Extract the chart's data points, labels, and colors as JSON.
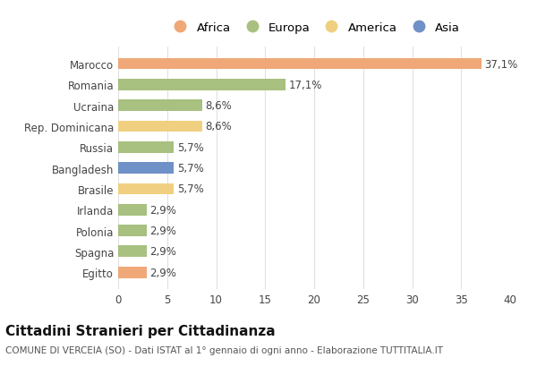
{
  "categories": [
    "Marocco",
    "Romania",
    "Ucraina",
    "Rep. Dominicana",
    "Russia",
    "Bangladesh",
    "Brasile",
    "Irlanda",
    "Polonia",
    "Spagna",
    "Egitto"
  ],
  "values": [
    37.1,
    17.1,
    8.6,
    8.6,
    5.7,
    5.7,
    5.7,
    2.9,
    2.9,
    2.9,
    2.9
  ],
  "labels": [
    "37,1%",
    "17,1%",
    "8,6%",
    "8,6%",
    "5,7%",
    "5,7%",
    "5,7%",
    "2,9%",
    "2,9%",
    "2,9%",
    "2,9%"
  ],
  "continents": [
    "Africa",
    "Europa",
    "Europa",
    "America",
    "Europa",
    "Asia",
    "America",
    "Europa",
    "Europa",
    "Europa",
    "Africa"
  ],
  "colors": {
    "Africa": "#F0A878",
    "Europa": "#A8C080",
    "America": "#F0D080",
    "Asia": "#7090C8"
  },
  "legend_order": [
    "Africa",
    "Europa",
    "America",
    "Asia"
  ],
  "title": "Cittadini Stranieri per Cittadinanza",
  "subtitle": "COMUNE DI VERCEIA (SO) - Dati ISTAT al 1° gennaio di ogni anno - Elaborazione TUTTITALIA.IT",
  "xlim": [
    0,
    40
  ],
  "xticks": [
    0,
    5,
    10,
    15,
    20,
    25,
    30,
    35,
    40
  ],
  "background_color": "#ffffff",
  "grid_color": "#e0e0e0",
  "bar_height": 0.55,
  "title_fontsize": 11,
  "subtitle_fontsize": 7.5,
  "label_fontsize": 8.5,
  "tick_fontsize": 8.5,
  "legend_fontsize": 9.5
}
